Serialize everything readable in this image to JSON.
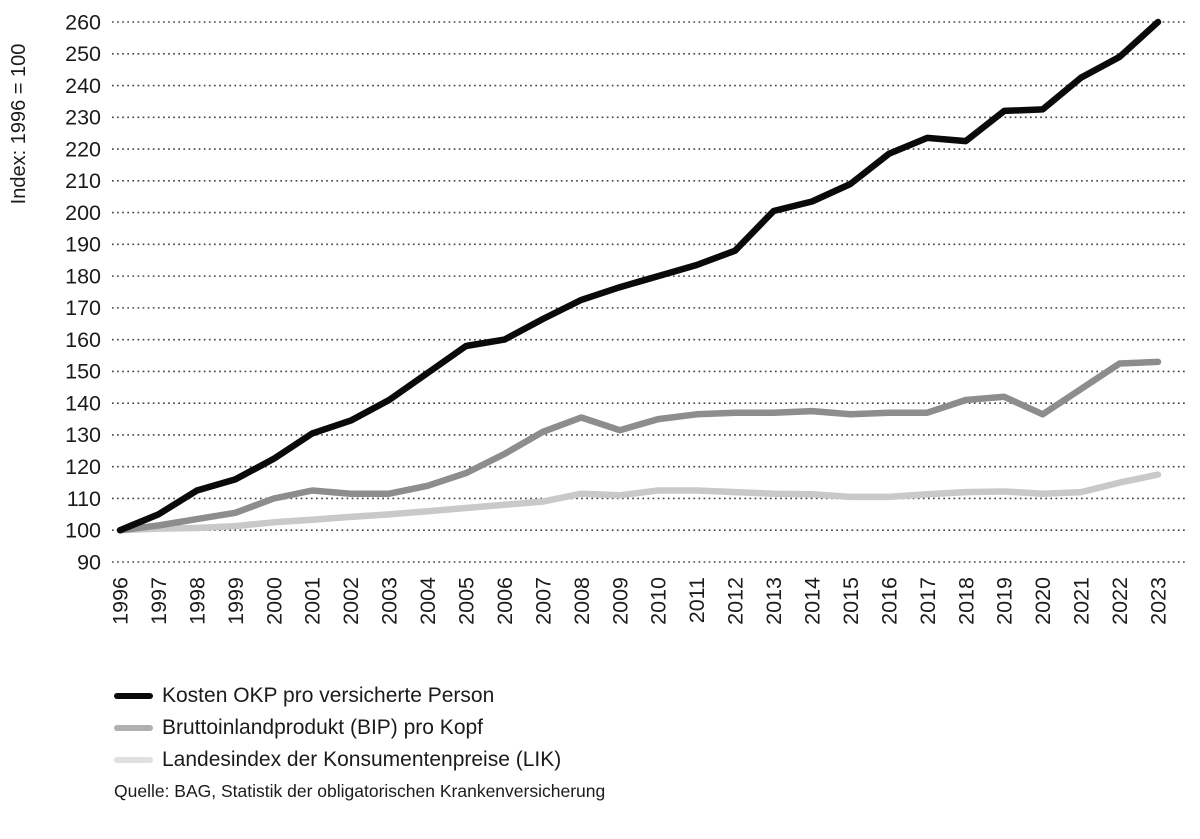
{
  "chart_data": {
    "type": "line",
    "title": "",
    "xlabel": "",
    "ylabel": "Index: 1996 = 100",
    "ylim": [
      90,
      260
    ],
    "ytick_step": 10,
    "grid": "horizontal-dotted",
    "legend_position": "bottom-left",
    "categories": [
      "1996",
      "1997",
      "1998",
      "1999",
      "2000",
      "2001",
      "2002",
      "2003",
      "2004",
      "2005",
      "2006",
      "2007",
      "2008",
      "2009",
      "2010",
      "2011",
      "2012",
      "2013",
      "2014",
      "2015",
      "2016",
      "2017",
      "2018",
      "2019",
      "2020",
      "2021",
      "2022",
      "2023"
    ],
    "series": [
      {
        "name": "Kosten OKP pro versicherte Person",
        "color": "#0a0a0a",
        "legend_color": "#0a0a0a",
        "values": [
          100,
          105,
          112.5,
          116,
          122.5,
          130.5,
          134.5,
          141,
          149.5,
          158,
          160,
          166.5,
          172.5,
          176.5,
          180,
          183.5,
          188,
          200.5,
          203.5,
          209,
          218.5,
          223.5,
          222.5,
          232,
          232.5,
          242.5,
          249,
          260
        ]
      },
      {
        "name": "Bruttoinlandprodukt (BIP) pro Kopf",
        "color": "#8d8d8d",
        "legend_color": "#b0b0b0",
        "values": [
          100,
          101.5,
          103.5,
          105.5,
          110,
          112.5,
          111.5,
          111.5,
          114,
          118,
          124,
          131,
          135.5,
          131.5,
          135,
          136.5,
          137,
          137,
          137.5,
          136.5,
          137,
          137,
          141,
          142,
          136.5,
          144.5,
          152.5,
          153
        ]
      },
      {
        "name": "Landesindex der Konsumentenpreise (LIK)",
        "color": "#c9c9c9",
        "legend_color": "#e0e0e0",
        "values": [
          100,
          100.5,
          100.7,
          101.3,
          102.5,
          103.3,
          104.2,
          105,
          106,
          107,
          108,
          109,
          111.5,
          111,
          112.5,
          112.5,
          112,
          111.5,
          111.3,
          110.5,
          110.5,
          111.3,
          112,
          112.2,
          111.5,
          112,
          115,
          117.5
        ]
      }
    ],
    "source": "Quelle: BAG, Statistik der obligatorischen Krankenversicherung"
  }
}
